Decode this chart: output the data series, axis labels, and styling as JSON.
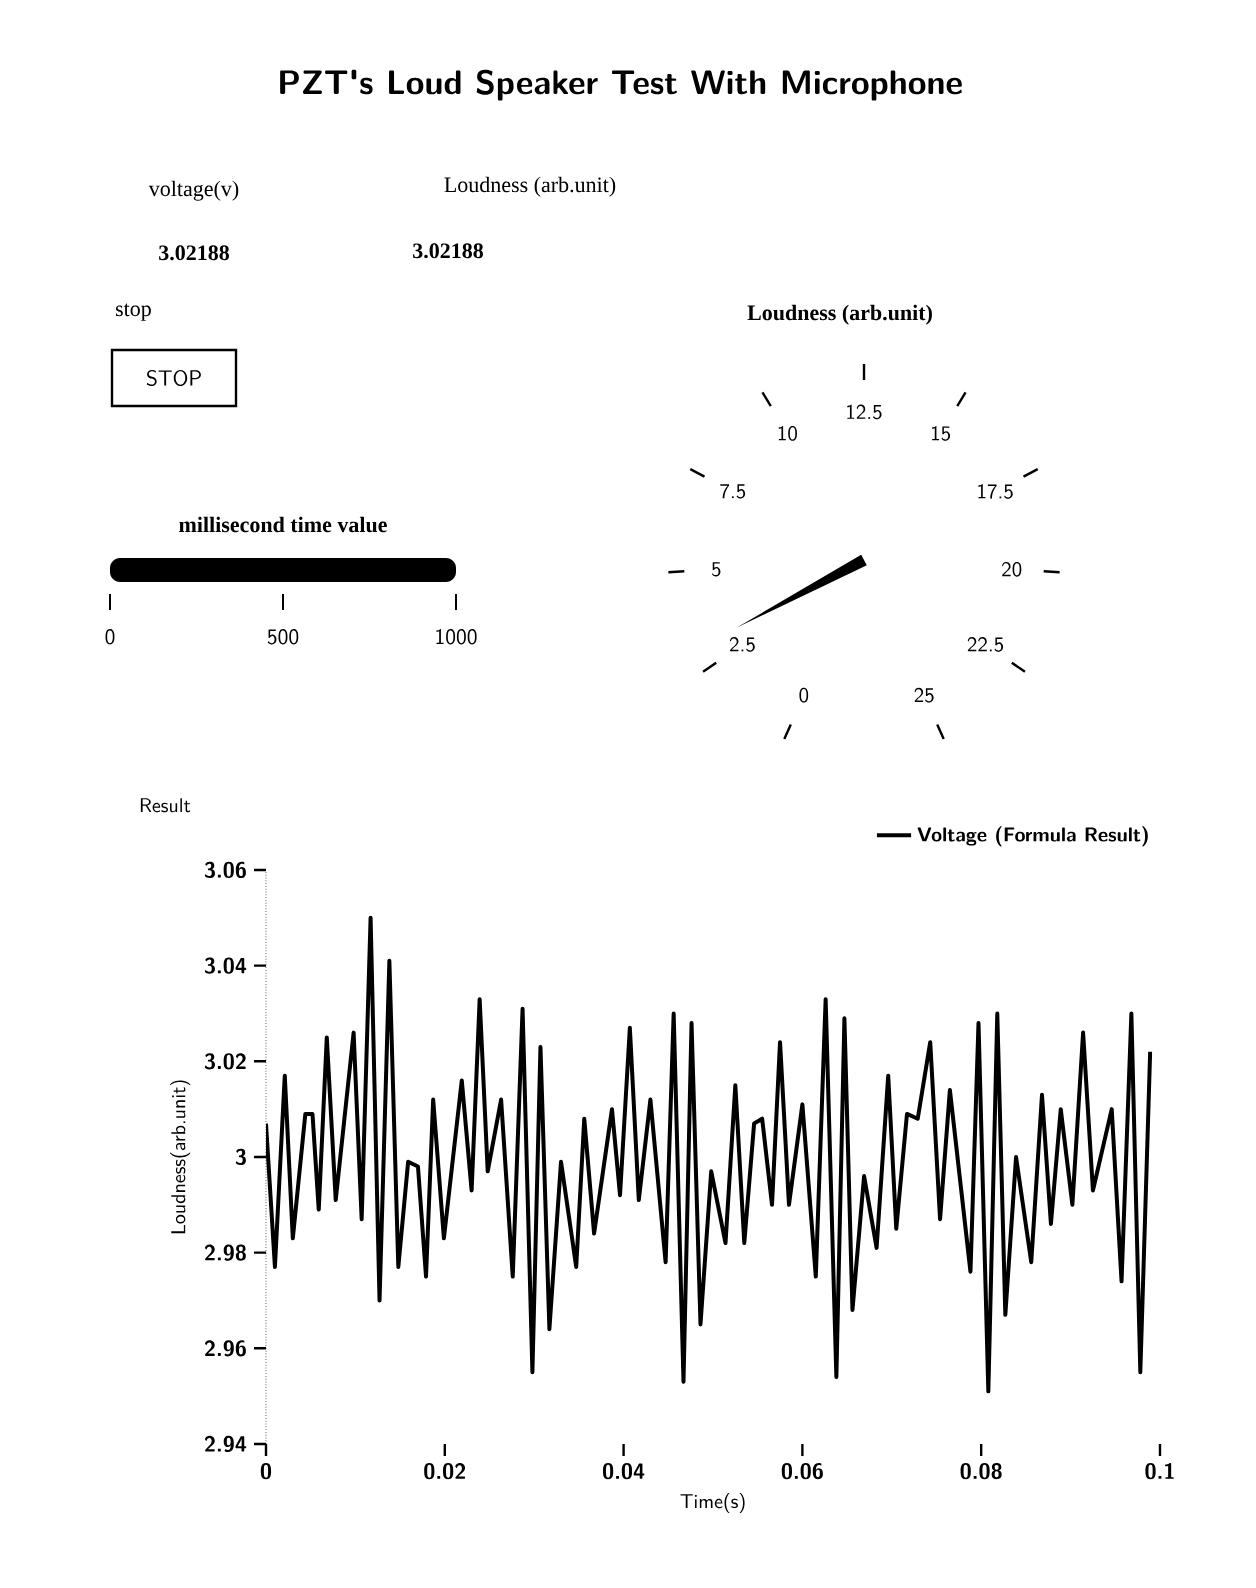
{
  "chart_data": [
    {
      "type": "other",
      "title": "PZT's Loud Speaker Test With Microphone",
      "annotations": [
        "voltage(v)",
        "Loudness (arb.unit)",
        "3.02188",
        "3.02188",
        "stop",
        "STOP"
      ]
    },
    {
      "type": "other",
      "title": "millisecond time value",
      "annotations": [
        "0",
        "500",
        "1000"
      ]
    },
    {
      "type": "other",
      "title": "Loudness (arb.unit)",
      "annotations": [
        "0",
        "2.5",
        "5",
        "7.5",
        "10",
        "12.5",
        "15",
        "17.5",
        "20",
        "22.5",
        "25"
      ]
    },
    {
      "type": "line",
      "title": "Result",
      "xlabel": "Time(s)",
      "ylabel": "Loudness(arb.unit)",
      "xlim": [
        0,
        0.1
      ],
      "ylim": [
        2.94,
        3.06
      ],
      "xticks": [
        0,
        0.02,
        0.04,
        0.06,
        0.08,
        0.1
      ],
      "yticks": [
        2.94,
        2.96,
        2.98,
        3,
        3.02,
        3.04,
        3.06
      ],
      "legend": "top right",
      "marker": "none",
      "line_style": "solid",
      "series": [
        {
          "name": "Voltage (Formula Result)",
          "color": "#000000",
          "x": [
            0,
            0.001,
            0.0021,
            0.003,
            0.0044,
            0.0052,
            0.0059,
            0.0068,
            0.0078,
            0.0098,
            0.0107,
            0.0117,
            0.0127,
            0.0138,
            0.0148,
            0.0159,
            0.017,
            0.0179,
            0.0187,
            0.0199,
            0.0219,
            0.023,
            0.0239,
            0.0248,
            0.0263,
            0.0276,
            0.0287,
            0.0298,
            0.0307,
            0.0317,
            0.033,
            0.0347,
            0.0356,
            0.0367,
            0.0387,
            0.0396,
            0.0407,
            0.0417,
            0.043,
            0.0447,
            0.0456,
            0.0467,
            0.0476,
            0.0486,
            0.0498,
            0.0514,
            0.0525,
            0.0535,
            0.0546,
            0.0555,
            0.0566,
            0.0575,
            0.0585,
            0.06,
            0.0615,
            0.0626,
            0.0638,
            0.0647,
            0.0656,
            0.0669,
            0.0683,
            0.0696,
            0.0705,
            0.0717,
            0.0729,
            0.0743,
            0.0754,
            0.0765,
            0.0788,
            0.0797,
            0.0808,
            0.0818,
            0.0827,
            0.0839,
            0.0856,
            0.0868,
            0.0878,
            0.0889,
            0.0902,
            0.0914,
            0.0925,
            0.0946,
            0.0957,
            0.0968,
            0.0978,
            0.0989
          ],
          "values": [
            3.007,
            2.977,
            3.017,
            2.983,
            3.009,
            3.009,
            2.989,
            3.025,
            2.991,
            3.026,
            2.987,
            3.05,
            2.97,
            3.041,
            2.977,
            2.999,
            2.998,
            2.975,
            3.012,
            2.983,
            3.016,
            2.993,
            3.033,
            2.997,
            3.012,
            2.975,
            3.031,
            2.955,
            3.023,
            2.964,
            2.999,
            2.977,
            3.008,
            2.984,
            3.01,
            2.992,
            3.027,
            2.991,
            3.012,
            2.978,
            3.03,
            2.953,
            3.028,
            2.965,
            2.997,
            2.982,
            3.015,
            2.982,
            3.007,
            3.008,
            2.99,
            3.024,
            2.99,
            3.011,
            2.975,
            3.033,
            2.954,
            3.029,
            2.968,
            2.996,
            2.981,
            3.017,
            2.985,
            3.009,
            3.008,
            3.024,
            2.987,
            3.014,
            2.976,
            3.028,
            2.951,
            3.03,
            2.967,
            3.0,
            2.978,
            3.013,
            2.986,
            3.01,
            2.99,
            3.026,
            2.993,
            3.01,
            2.974,
            3.03,
            2.955,
            3.022
          ]
        }
      ]
    }
  ]
}
